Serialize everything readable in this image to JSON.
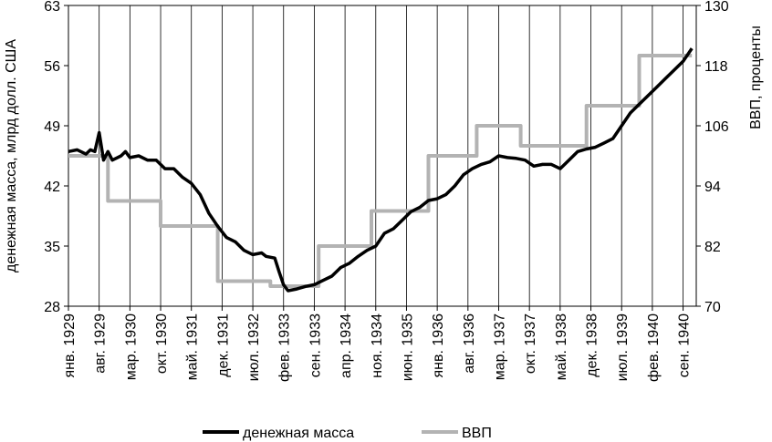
{
  "chart_data": {
    "type": "line",
    "title": "",
    "ylabel": "денежная масса, млрд долл. США",
    "y2label": "ВВП, проценты",
    "ylim": [
      28,
      63
    ],
    "yticks": [
      28,
      35,
      42,
      49,
      56,
      63
    ],
    "y2lim": [
      70,
      130
    ],
    "y2ticks": [
      70,
      82,
      94,
      106,
      118,
      130
    ],
    "x_range": [
      "1929-01",
      "1940-12"
    ],
    "x_ticks": [
      "янв. 1929",
      "авг. 1929",
      "мар. 1930",
      "окт. 1930",
      "май. 1931",
      "дек. 1931",
      "июл. 1932",
      "фев. 1933",
      "сен. 1933",
      "апр. 1934",
      "ноя. 1934",
      "июн. 1935",
      "янв. 1936",
      "авг. 1936",
      "мар. 1937",
      "окт. 1937",
      "май. 1938",
      "дек. 1938",
      "июл. 1939",
      "фев. 1940",
      "сен. 1940"
    ],
    "x_tick_dates": [
      "1929-01",
      "1929-08",
      "1930-03",
      "1930-10",
      "1931-05",
      "1931-12",
      "1932-07",
      "1933-02",
      "1933-09",
      "1934-04",
      "1934-11",
      "1935-06",
      "1936-01",
      "1936-08",
      "1937-03",
      "1937-10",
      "1938-05",
      "1938-12",
      "1939-07",
      "1940-02",
      "1940-09"
    ],
    "grid": "vertical",
    "legend": "bottom",
    "colors": {
      "money": "#000000",
      "gdp": "#b3b3b3"
    },
    "series": [
      {
        "name": "денежная масса",
        "axis": "left",
        "points": [
          [
            "1929-01",
            46.0
          ],
          [
            "1929-03",
            46.2
          ],
          [
            "1929-05",
            45.7
          ],
          [
            "1929-06",
            46.2
          ],
          [
            "1929-07",
            46.0
          ],
          [
            "1929-08",
            48.2
          ],
          [
            "1929-09",
            45.0
          ],
          [
            "1929-10",
            46.0
          ],
          [
            "1929-11",
            45.0
          ],
          [
            "1930-01",
            45.5
          ],
          [
            "1930-02",
            46.0
          ],
          [
            "1930-03",
            45.3
          ],
          [
            "1930-05",
            45.5
          ],
          [
            "1930-07",
            45.0
          ],
          [
            "1930-09",
            45.0
          ],
          [
            "1930-11",
            44.0
          ],
          [
            "1931-01",
            44.0
          ],
          [
            "1931-03",
            43.0
          ],
          [
            "1931-05",
            42.3
          ],
          [
            "1931-07",
            41.0
          ],
          [
            "1931-09",
            38.8
          ],
          [
            "1931-11",
            37.3
          ],
          [
            "1932-01",
            36.0
          ],
          [
            "1932-03",
            35.5
          ],
          [
            "1932-05",
            34.5
          ],
          [
            "1932-07",
            34.0
          ],
          [
            "1932-09",
            34.2
          ],
          [
            "1932-10",
            33.8
          ],
          [
            "1932-12",
            33.6
          ],
          [
            "1933-01",
            32.0
          ],
          [
            "1933-02",
            30.5
          ],
          [
            "1933-03",
            29.8
          ],
          [
            "1933-05",
            30.0
          ],
          [
            "1933-07",
            30.3
          ],
          [
            "1933-09",
            30.5
          ],
          [
            "1933-11",
            31.0
          ],
          [
            "1934-01",
            31.5
          ],
          [
            "1934-03",
            32.5
          ],
          [
            "1934-05",
            33.0
          ],
          [
            "1934-07",
            33.8
          ],
          [
            "1934-09",
            34.5
          ],
          [
            "1934-11",
            35.0
          ],
          [
            "1935-01",
            36.5
          ],
          [
            "1935-03",
            37.0
          ],
          [
            "1935-05",
            38.0
          ],
          [
            "1935-07",
            39.0
          ],
          [
            "1935-09",
            39.5
          ],
          [
            "1935-11",
            40.3
          ],
          [
            "1936-01",
            40.5
          ],
          [
            "1936-03",
            41.0
          ],
          [
            "1936-05",
            42.0
          ],
          [
            "1936-07",
            43.3
          ],
          [
            "1936-09",
            44.0
          ],
          [
            "1936-11",
            44.5
          ],
          [
            "1937-01",
            44.8
          ],
          [
            "1937-03",
            45.5
          ],
          [
            "1937-05",
            45.3
          ],
          [
            "1937-07",
            45.2
          ],
          [
            "1937-09",
            45.0
          ],
          [
            "1937-11",
            44.3
          ],
          [
            "1938-01",
            44.5
          ],
          [
            "1938-03",
            44.5
          ],
          [
            "1938-05",
            44.0
          ],
          [
            "1938-07",
            45.0
          ],
          [
            "1938-09",
            46.0
          ],
          [
            "1938-11",
            46.3
          ],
          [
            "1939-01",
            46.5
          ],
          [
            "1939-03",
            47.0
          ],
          [
            "1939-05",
            47.5
          ],
          [
            "1939-07",
            49.0
          ],
          [
            "1939-09",
            50.5
          ],
          [
            "1939-11",
            51.5
          ],
          [
            "1940-01",
            52.5
          ],
          [
            "1940-03",
            53.5
          ],
          [
            "1940-05",
            54.5
          ],
          [
            "1940-07",
            55.5
          ],
          [
            "1940-09",
            56.5
          ],
          [
            "1940-11",
            58.0
          ]
        ]
      },
      {
        "name": "ВВП",
        "axis": "right",
        "points": [
          [
            "1929-01",
            100
          ],
          [
            "1929-10",
            100
          ],
          [
            "1929-10",
            91
          ],
          [
            "1930-10",
            91
          ],
          [
            "1930-10",
            86
          ],
          [
            "1931-11",
            86
          ],
          [
            "1931-11",
            75
          ],
          [
            "1932-11",
            75
          ],
          [
            "1932-11",
            74
          ],
          [
            "1933-10",
            74
          ],
          [
            "1933-10",
            82
          ],
          [
            "1934-10",
            82
          ],
          [
            "1934-10",
            89
          ],
          [
            "1935-11",
            89
          ],
          [
            "1935-11",
            100
          ],
          [
            "1936-10",
            100
          ],
          [
            "1936-10",
            106
          ],
          [
            "1937-08",
            106
          ],
          [
            "1937-08",
            102
          ],
          [
            "1938-11",
            102
          ],
          [
            "1938-11",
            110
          ],
          [
            "1939-11",
            110
          ],
          [
            "1939-11",
            120
          ],
          [
            "1940-11",
            120
          ]
        ]
      }
    ]
  }
}
